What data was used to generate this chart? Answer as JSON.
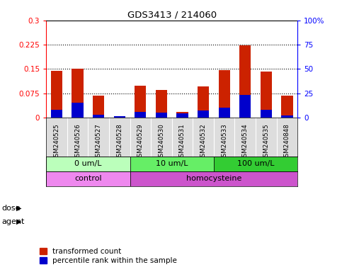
{
  "title": "GDS3413 / 214060",
  "samples": [
    "GSM240525",
    "GSM240526",
    "GSM240527",
    "GSM240528",
    "GSM240529",
    "GSM240530",
    "GSM240531",
    "GSM240532",
    "GSM240533",
    "GSM240534",
    "GSM240535",
    "GSM240848"
  ],
  "red_values": [
    0.145,
    0.151,
    0.068,
    0.0,
    0.098,
    0.085,
    0.018,
    0.095,
    0.147,
    0.222,
    0.142,
    0.068
  ],
  "blue_values_pct": [
    8,
    15,
    3,
    1,
    6,
    5,
    4,
    7,
    10,
    23,
    8,
    2
  ],
  "dose_groups": [
    {
      "label": "0 um/L",
      "start": 0,
      "end": 4,
      "color": "#bbffbb"
    },
    {
      "label": "10 um/L",
      "start": 4,
      "end": 8,
      "color": "#66ee66"
    },
    {
      "label": "100 um/L",
      "start": 8,
      "end": 12,
      "color": "#33cc33"
    }
  ],
  "agent_groups": [
    {
      "label": "control",
      "start": 0,
      "end": 4,
      "color": "#ee88ee"
    },
    {
      "label": "homocysteine",
      "start": 4,
      "end": 12,
      "color": "#cc55cc"
    }
  ],
  "ylim_left": [
    0,
    0.3
  ],
  "ylim_right": [
    0,
    100
  ],
  "yticks_left": [
    0,
    0.075,
    0.15,
    0.225,
    0.3
  ],
  "yticks_right": [
    0,
    25,
    50,
    75,
    100
  ],
  "ytick_labels_left": [
    "0",
    "0.075",
    "0.15",
    "0.225",
    "0.3"
  ],
  "ytick_labels_right": [
    "0",
    "25",
    "50",
    "75",
    "100%"
  ],
  "hlines": [
    0.075,
    0.15,
    0.225
  ],
  "bar_color_red": "#cc2200",
  "bar_color_blue": "#0000cc",
  "legend_items": [
    "transformed count",
    "percentile rank within the sample"
  ],
  "dose_label": "dose",
  "agent_label": "agent",
  "bar_width": 0.55,
  "label_row_color": "#dddddd"
}
